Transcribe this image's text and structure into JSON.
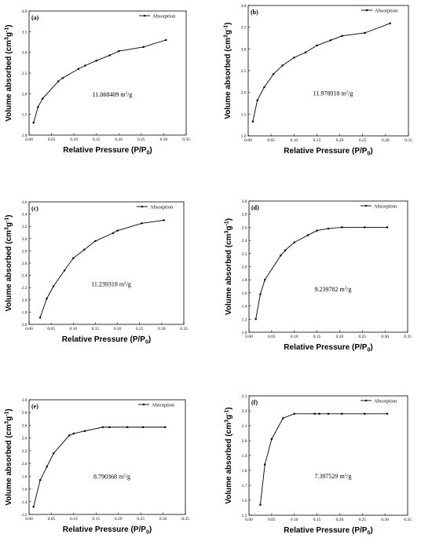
{
  "chart_data": [
    {
      "type": "line",
      "panel_label": "(a)",
      "legend": "Absorption",
      "legend_position": "top-right",
      "xlabel": "Relative Pressure (P/P0)",
      "ylabel": "Volume absorbed (cm3g-1)",
      "xlim": [
        0,
        0.35
      ],
      "ylim": [
        1.0,
        4.0
      ],
      "xticks": [
        "0.00",
        "0.05",
        "0.10",
        "0.15",
        "0.20",
        "0.25",
        "0.30",
        "0.35"
      ],
      "yticks": [
        "1.0",
        "1.5",
        "2.0",
        "2.5",
        "3.0",
        "3.5",
        "4.0"
      ],
      "annotation": "11.068409 m2/g",
      "series": [
        {
          "x": [
            0.01,
            0.02,
            0.03,
            0.065,
            0.075,
            0.11,
            0.125,
            0.15,
            0.18,
            0.2,
            0.255,
            0.305
          ],
          "y": [
            1.3,
            1.68,
            1.88,
            2.3,
            2.38,
            2.6,
            2.68,
            2.8,
            2.93,
            3.03,
            3.13,
            3.3
          ]
        }
      ]
    },
    {
      "type": "line",
      "panel_label": "(b)",
      "legend": "Absorption",
      "legend_position": "top-right",
      "xlabel": "Relative Pressure (P/P0)",
      "ylabel": "Volume absorbed (cm3g-1)",
      "xlim": [
        0,
        0.35
      ],
      "ylim": [
        1.0,
        4.0
      ],
      "xticks": [
        "0.00",
        "0.05",
        "0.10",
        "0.15",
        "0.20",
        "0.25",
        "0.30",
        "0.35"
      ],
      "yticks": [
        "1.0",
        "1.5",
        "2.0",
        "2.5",
        "3.0",
        "3.5",
        "4.0"
      ],
      "annotation": "11.978018 m2/g",
      "series": [
        {
          "x": [
            0.01,
            0.02,
            0.035,
            0.055,
            0.075,
            0.1,
            0.125,
            0.15,
            0.18,
            0.205,
            0.255,
            0.31
          ],
          "y": [
            1.33,
            1.82,
            2.12,
            2.42,
            2.62,
            2.8,
            2.92,
            3.08,
            3.2,
            3.3,
            3.37,
            3.59
          ]
        }
      ]
    },
    {
      "type": "line",
      "panel_label": "(c)",
      "legend": "Absorption",
      "legend_position": "top-right",
      "xlabel": "Relative Pressure (P/P0)",
      "ylabel": "Volume absorbed (cm3g-1)",
      "xlim": [
        0,
        0.35
      ],
      "ylim": [
        1.6,
        3.6
      ],
      "xticks": [
        "0.00",
        "0.05",
        "0.10",
        "0.15",
        "0.20",
        "0.25",
        "0.30",
        "0.35"
      ],
      "yticks": [
        "1.6",
        "1.8",
        "2.0",
        "2.2",
        "2.4",
        "2.6",
        "2.8",
        "3.0",
        "3.2",
        "3.4",
        "3.6"
      ],
      "annotation": "11.239318 m2/g",
      "series": [
        {
          "x": [
            0.025,
            0.04,
            0.055,
            0.08,
            0.1,
            0.125,
            0.15,
            0.19,
            0.2,
            0.255,
            0.305
          ],
          "y": [
            1.71,
            2.02,
            2.22,
            2.48,
            2.68,
            2.82,
            2.96,
            3.09,
            3.13,
            3.25,
            3.3
          ]
        }
      ]
    },
    {
      "type": "line",
      "panel_label": "(d)",
      "legend": "Absorption",
      "legend_position": "top-right",
      "xlabel": "Relative Pressure (P/P0)",
      "ylabel": "Volume absorbed (cm3g-1)",
      "xlim": [
        0,
        0.35
      ],
      "ylim": [
        1.0,
        3.0
      ],
      "xticks": [
        "0.00",
        "0.05",
        "0.10",
        "0.15",
        "0.20",
        "0.25",
        "0.30",
        "0.35"
      ],
      "yticks": [
        "1.0",
        "1.2",
        "1.4",
        "1.6",
        "1.8",
        "2.0",
        "2.2",
        "2.4",
        "2.6",
        "2.8",
        "3.0"
      ],
      "annotation": "9.239782 m2/g",
      "series": [
        {
          "x": [
            0.015,
            0.025,
            0.035,
            0.07,
            0.08,
            0.1,
            0.13,
            0.15,
            0.175,
            0.205,
            0.255,
            0.305
          ],
          "y": [
            1.2,
            1.58,
            1.8,
            2.17,
            2.25,
            2.37,
            2.48,
            2.55,
            2.58,
            2.6,
            2.6,
            2.6
          ]
        }
      ]
    },
    {
      "type": "line",
      "panel_label": "(e)",
      "legend": "Absorption",
      "legend_position": "top-right",
      "xlabel": "Relative Pressure (P/P0)",
      "ylabel": "Volume absorbed (cm3g-1)",
      "xlim": [
        0,
        0.35
      ],
      "ylim": [
        1.2,
        3.0
      ],
      "xticks": [
        "0.00",
        "0.05",
        "0.10",
        "0.15",
        "0.20",
        "0.25",
        "0.30",
        "0.35"
      ],
      "yticks": [
        "1.2",
        "1.4",
        "1.6",
        "1.8",
        "2.0",
        "2.2",
        "2.4",
        "2.6",
        "2.8",
        "3.0"
      ],
      "annotation": "8.790368 m2/g",
      "series": [
        {
          "x": [
            0.01,
            0.025,
            0.04,
            0.055,
            0.09,
            0.1,
            0.125,
            0.165,
            0.18,
            0.22,
            0.255,
            0.305
          ],
          "y": [
            1.32,
            1.74,
            1.95,
            2.16,
            2.44,
            2.47,
            2.51,
            2.57,
            2.57,
            2.57,
            2.57,
            2.57
          ]
        }
      ]
    },
    {
      "type": "line",
      "panel_label": "(f)",
      "legend": "Absorption",
      "legend_position": "top-right",
      "xlabel": "Relative Pressure (P/P0)",
      "ylabel": "Volume absorbed (cm3g-1)",
      "xlim": [
        0,
        0.35
      ],
      "ylim": [
        1.5,
        2.3
      ],
      "xticks": [
        "0.00",
        "0.05",
        "0.10",
        "0.15",
        "0.20",
        "0.25",
        "0.30",
        "0.35"
      ],
      "yticks": [
        "1.5",
        "1.6",
        "1.7",
        "1.8",
        "1.9",
        "2.0",
        "2.1",
        "2.2",
        "2.3"
      ],
      "annotation": "7.397529 m2/g",
      "series": [
        {
          "x": [
            0.025,
            0.035,
            0.05,
            0.075,
            0.1,
            0.145,
            0.155,
            0.175,
            0.205,
            0.255,
            0.305
          ],
          "y": [
            1.57,
            1.84,
            2.01,
            2.15,
            2.18,
            2.18,
            2.18,
            2.18,
            2.18,
            2.18,
            2.18
          ]
        }
      ]
    }
  ]
}
